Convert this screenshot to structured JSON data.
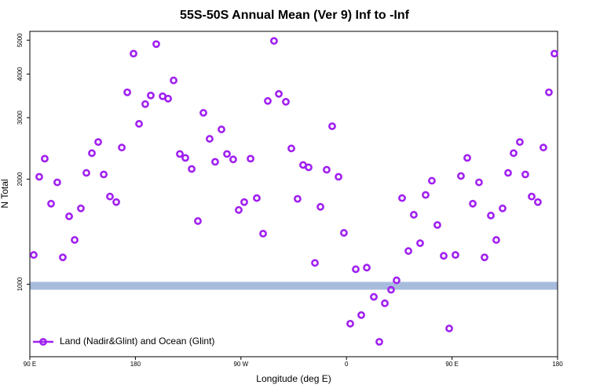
{
  "chart_data": {
    "type": "scatter",
    "title": "55S-50S Annual Mean (Ver 9)   Inf to -Inf",
    "xlabel": "Longitude (deg E)",
    "ylabel": "N Total",
    "log_y": true,
    "legend": "lower left",
    "xlim": [
      90,
      540
    ],
    "ylim": [
      620,
      5300
    ],
    "xticks": [
      {
        "value": 90,
        "label": "90 E"
      },
      180,
      {
        "value": 270,
        "label": "90 W"
      },
      {
        "value": 360,
        "label": "0"
      },
      {
        "value": 450,
        "label": "90 E"
      },
      {
        "value": 540,
        "label": "180"
      }
    ],
    "yticks": [
      1000,
      2000,
      3000,
      4000,
      5000
    ],
    "x": [
      93.3,
      98.0,
      102.7,
      108.1,
      113.4,
      118.1,
      123.5,
      128.2,
      133.5,
      138.2,
      142.9,
      148.3,
      153.0,
      158.3,
      163.7,
      168.4,
      173.1,
      178.4,
      183.1,
      188.4,
      193.1,
      197.8,
      203.2,
      207.9,
      212.6,
      217.9,
      222.6,
      228.0,
      233.3,
      238.0,
      243.3,
      248.0,
      253.4,
      258.1,
      263.4,
      268.1,
      272.8,
      278.2,
      283.5,
      288.9,
      292.9,
      298.2,
      302.3,
      308.3,
      313.0,
      318.3,
      323.0,
      327.7,
      333.1,
      337.8,
      343.1,
      347.8,
      353.2,
      357.8,
      363.2,
      367.9,
      372.6,
      377.3,
      383.3,
      388.0,
      392.7,
      398.0,
      402.7,
      407.4,
      412.8,
      417.4,
      422.8,
      427.5,
      432.8,
      437.5,
      442.9,
      447.6,
      452.9,
      457.6,
      463.0,
      467.7,
      473.0,
      477.7,
      483.1,
      487.7,
      493.1,
      497.8,
      502.5,
      507.8,
      512.5,
      517.9,
      523.2,
      527.9,
      532.6,
      537.3
    ],
    "series": [
      {
        "name": "Land (Nadir&Glint) and Ocean (Glint)",
        "color": "#a020f0",
        "values": [
          1213,
          2031,
          2289,
          1701,
          1958,
          1194,
          1565,
          1339,
          1649,
          2084,
          2374,
          2555,
          2063,
          1783,
          1719,
          2463,
          3546,
          4577,
          2880,
          3280,
          3473,
          4873,
          3455,
          3401,
          3835,
          2361,
          2301,
          2139,
          1517,
          3097,
          2609,
          2242,
          2776,
          2361,
          2278,
          1632,
          1719,
          2289,
          1765,
          1396,
          3349,
          4976,
          3509,
          3331,
          2449,
          1756,
          2196,
          2162,
          1151,
          1666,
          2128,
          2835,
          2031,
          1403,
          771,
          1104,
          816,
          1116,
          920,
          684,
          882,
          964,
          1026,
          1765,
          1245,
          1581,
          1311,
          1802,
          1979,
          1478,
          1206,
          747,
          1213,
          2042,
          2301,
          1701,
          1958,
          1194,
          1573,
          1339,
          1649,
          2084,
          2374,
          2555,
          2063,
          1783,
          1719,
          2463,
          3546,
          4577
        ]
      }
    ]
  }
}
